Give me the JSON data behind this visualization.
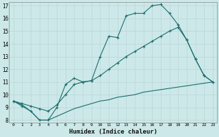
{
  "xlabel": "Humidex (Indice chaleur)",
  "bg_color": "#cce8e8",
  "line_color": "#1a6b6b",
  "grid_color": "#b8d4d4",
  "xlim": [
    -0.5,
    23.5
  ],
  "ylim": [
    7.8,
    17.3
  ],
  "yticks": [
    8,
    9,
    10,
    11,
    12,
    13,
    14,
    15,
    16,
    17
  ],
  "xticks": [
    0,
    1,
    2,
    3,
    4,
    5,
    6,
    7,
    8,
    9,
    10,
    11,
    12,
    13,
    14,
    15,
    16,
    17,
    18,
    19,
    20,
    21,
    22,
    23
  ],
  "line1_x": [
    0,
    1,
    2,
    3,
    4,
    5,
    6,
    7,
    8,
    9,
    10,
    11,
    12,
    13,
    14,
    15,
    16,
    17,
    18,
    19,
    20,
    21,
    22,
    23
  ],
  "line1_y": [
    9.5,
    9.1,
    8.7,
    8.0,
    8.0,
    9.0,
    10.8,
    11.3,
    11.0,
    11.1,
    13.0,
    14.6,
    14.5,
    16.2,
    16.4,
    16.4,
    17.0,
    17.1,
    16.4,
    15.5,
    14.3,
    12.8,
    11.5,
    11.0
  ],
  "line2_x": [
    0,
    1,
    2,
    3,
    4,
    5,
    6,
    7,
    8,
    9,
    10,
    11,
    12,
    13,
    14,
    15,
    16,
    17,
    18,
    19,
    20,
    21,
    22,
    23
  ],
  "line2_y": [
    9.5,
    9.3,
    9.1,
    8.9,
    8.7,
    9.2,
    10.0,
    10.8,
    11.0,
    11.1,
    11.5,
    12.0,
    12.5,
    13.0,
    13.4,
    13.8,
    14.2,
    14.6,
    15.0,
    15.3,
    14.3,
    12.8,
    11.5,
    11.0
  ],
  "line3_x": [
    0,
    1,
    2,
    3,
    4,
    5,
    6,
    7,
    8,
    9,
    10,
    11,
    12,
    13,
    14,
    15,
    16,
    17,
    18,
    19,
    20,
    21,
    22,
    23
  ],
  "line3_y": [
    9.5,
    9.2,
    8.7,
    8.0,
    8.0,
    8.3,
    8.6,
    8.9,
    9.1,
    9.3,
    9.5,
    9.6,
    9.8,
    9.9,
    10.0,
    10.2,
    10.3,
    10.4,
    10.5,
    10.6,
    10.7,
    10.8,
    10.9,
    11.0
  ]
}
